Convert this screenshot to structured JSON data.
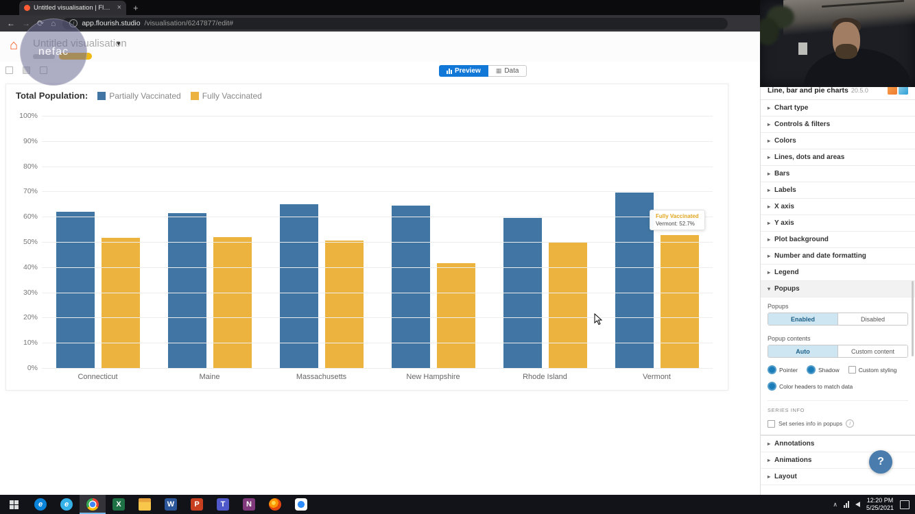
{
  "glyphs": {
    "close": "×",
    "new_tab": "+",
    "back": "←",
    "forward": "→",
    "refresh": "⟳",
    "home": "⌂",
    "house": "⌂",
    "chevron_down": "▾",
    "caret": "▸",
    "caret_open": "▾",
    "info": "i",
    "data_grid": "▦",
    "tray_chevron": "∧"
  },
  "browser": {
    "tab_title": "Untitled visualisation | Flourish",
    "url_host": "app.flourish.studio",
    "url_path": "/visualisation/6247877/edit#"
  },
  "header": {
    "title": "Untitled visualisation",
    "watermark": "nefac"
  },
  "toolbar": {
    "preview": "Preview",
    "data": "Data"
  },
  "chart_data": {
    "type": "bar",
    "legend_title": "Total Population:",
    "categories": [
      "Connecticut",
      "Maine",
      "Massachusetts",
      "New Hampshire",
      "Rhode Island",
      "Vermont"
    ],
    "series": [
      {
        "name": "Partially Vaccinated",
        "color": "#4176a4",
        "values": [
          62,
          61.5,
          65,
          64.5,
          59.5,
          69.5
        ]
      },
      {
        "name": "Fully Vaccinated",
        "color": "#ecb33e",
        "values": [
          51.5,
          52,
          50.5,
          41.5,
          50,
          52.7
        ]
      }
    ],
    "ylim": [
      0,
      100
    ],
    "ytick_step": 10,
    "ytick_suffix": "%",
    "grid": true,
    "legend_position": "top",
    "tooltip": {
      "series": "Fully Vaccinated",
      "text": "Vermont: 52.7%"
    }
  },
  "sidebar": {
    "template_name": "Line, bar and pie charts",
    "template_version": "20.5.0",
    "sections": [
      "Chart type",
      "Controls & filters",
      "Colors",
      "Lines, dots and areas",
      "Bars",
      "Labels",
      "X axis",
      "Y axis",
      "Plot background",
      "Number and date formatting",
      "Legend"
    ],
    "popups": {
      "header": "Popups",
      "state_label": "Popups",
      "enabled": "Enabled",
      "disabled": "Disabled",
      "contents_label": "Popup contents",
      "auto": "Auto",
      "custom": "Custom content",
      "pointer": "Pointer",
      "shadow": "Shadow",
      "custom_styling": "Custom styling",
      "color_headers": "Color headers to match data",
      "series_info": "SERIES INFO",
      "set_series_info": "Set series info in popups"
    },
    "bottom_sections": [
      "Annotations",
      "Animations",
      "Layout"
    ],
    "help": "?",
    "accent_selected": "#cde6f2",
    "toggle_color": "#1b7db8"
  },
  "taskbar": {
    "time": "12:20 PM",
    "date": "5/25/2021",
    "icons": [
      "edge",
      "ie",
      "chrome",
      "excel",
      "folder",
      "word",
      "powerpoint",
      "teams",
      "onenote",
      "firefox",
      "zoom"
    ],
    "active_icon": "chrome"
  }
}
